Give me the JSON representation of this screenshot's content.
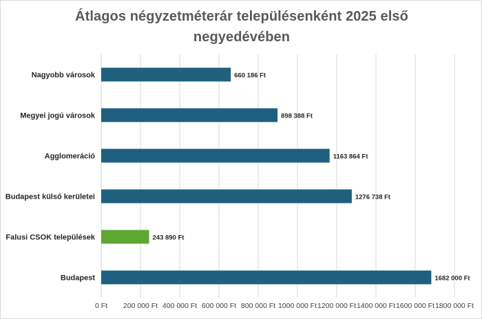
{
  "chart_data": {
    "type": "bar",
    "orientation": "horizontal",
    "title": "Átlagos négyzetméterár településenként 2025 első negyedévében",
    "title_lines": [
      "Átlagos négyzetméterár településenként 2025 első",
      "negyedévében"
    ],
    "categories": [
      "Nagyobb városok",
      "Megyei jogú városok",
      "Agglomeráció",
      "Budapest külső kerületei",
      "Falusi CSOK települések",
      "Budapest"
    ],
    "values": [
      660186,
      898388,
      1163864,
      1276738,
      243890,
      1682000
    ],
    "data_labels": [
      "660 186 Ft",
      "898 388 Ft",
      "1163 864 Ft",
      "1276 738 Ft",
      "243 890 Ft",
      "1682 000 Ft"
    ],
    "bar_colors": [
      "#1f5f7f",
      "#1f5f7f",
      "#1f5f7f",
      "#1f5f7f",
      "#5ea832",
      "#1f5f7f"
    ],
    "xlim": [
      0,
      1800000
    ],
    "x_ticks": [
      0,
      200000,
      400000,
      600000,
      800000,
      1000000,
      1200000,
      1400000,
      1600000,
      1800000
    ],
    "x_tick_labels": [
      "0 Ft",
      "200 000 Ft",
      "400 000 Ft",
      "600 000 Ft",
      "800 000 Ft",
      "1000 000 Ft",
      "1200 000 Ft",
      "1400 000 Ft",
      "1600 000 Ft",
      "1800 000 Ft"
    ],
    "xlabel": "",
    "ylabel": "",
    "grid": "vertical",
    "legend": "none"
  }
}
